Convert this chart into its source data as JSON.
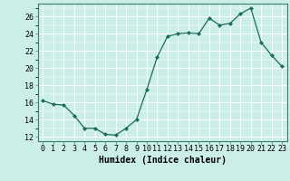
{
  "x": [
    0,
    1,
    2,
    3,
    4,
    5,
    6,
    7,
    8,
    9,
    10,
    11,
    12,
    13,
    14,
    15,
    16,
    17,
    18,
    19,
    20,
    21,
    22,
    23
  ],
  "y": [
    16.2,
    15.8,
    15.7,
    14.5,
    13.0,
    13.0,
    12.3,
    12.2,
    13.0,
    14.0,
    17.5,
    21.3,
    23.7,
    24.0,
    24.1,
    24.0,
    25.8,
    25.0,
    25.2,
    26.3,
    27.0,
    23.0,
    21.5,
    20.2
  ],
  "line_color": "#1a6b5a",
  "marker": "D",
  "marker_size": 2.2,
  "bg_color": "#cceee8",
  "grid_color": "#ffffff",
  "xlabel": "Humidex (Indice chaleur)",
  "ylim": [
    11.5,
    27.5
  ],
  "yticks": [
    12,
    14,
    16,
    18,
    20,
    22,
    24,
    26
  ],
  "xlim": [
    -0.5,
    23.5
  ],
  "xticks": [
    0,
    1,
    2,
    3,
    4,
    5,
    6,
    7,
    8,
    9,
    10,
    11,
    12,
    13,
    14,
    15,
    16,
    17,
    18,
    19,
    20,
    21,
    22,
    23
  ],
  "label_fontsize": 7,
  "tick_fontsize": 6
}
